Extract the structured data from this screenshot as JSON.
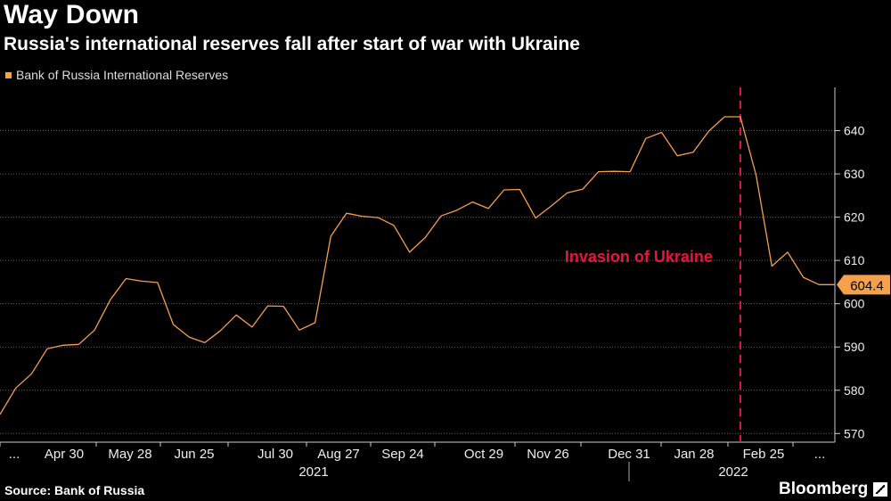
{
  "header": {
    "title": "Way Down",
    "subtitle": "Russia's international reserves fall after start of war with Ukraine"
  },
  "footer": {
    "source": "Source: Bank of Russia",
    "brand": "Bloomberg"
  },
  "colors": {
    "line": "#f5a04a",
    "annotation": "#e8163d",
    "background": "#000000",
    "grid": "#666666"
  },
  "chart_data": {
    "type": "line",
    "title": "Way Down",
    "subtitle": "Russia's international reserves fall after start of war with Ukraine",
    "legend": {
      "position": "top-left",
      "entries": [
        "Bank of Russia International Reserves"
      ]
    },
    "ylim": [
      568,
      650
    ],
    "yticks": [
      570,
      580,
      590,
      600,
      610,
      620,
      630,
      640
    ],
    "y_axis_side": "right",
    "grid": true,
    "x_tick_labels": [
      "...",
      "Apr 30",
      "May 28",
      "Jun 25",
      "Jul 30",
      "Aug 27",
      "Sep 24",
      "Oct 29",
      "Nov 26",
      "Dec 31",
      "Jan 28",
      "Feb 25",
      "..."
    ],
    "x_year_labels": [
      "2021",
      "2022"
    ],
    "last_value_label": "604.4",
    "annotation": {
      "text": "Invasion of Ukraine",
      "at_x": 47,
      "style": "dashed vertical line"
    },
    "series": [
      {
        "name": "Bank of Russia International Reserves",
        "x": [
          0,
          1,
          2,
          3,
          4,
          5,
          6,
          7,
          8,
          9,
          10,
          11,
          12,
          13,
          14,
          15,
          16,
          17,
          18,
          19,
          20,
          21,
          22,
          23,
          24,
          25,
          26,
          27,
          28,
          29,
          30,
          31,
          32,
          33,
          34,
          35,
          36,
          37,
          38,
          39,
          40,
          41,
          42,
          43,
          44,
          45,
          46,
          47,
          48,
          49,
          50,
          51,
          52,
          53
        ],
        "values": [
          574.4,
          580.5,
          583.8,
          589.6,
          590.4,
          590.6,
          593.9,
          600.9,
          605.8,
          605.2,
          604.9,
          595.2,
          592.3,
          591.0,
          593.8,
          597.4,
          594.6,
          599.5,
          599.4,
          593.9,
          595.6,
          615.6,
          620.9,
          620.2,
          619.9,
          618.1,
          611.9,
          615.3,
          620.3,
          621.6,
          623.5,
          622.0,
          626.3,
          626.4,
          619.8,
          622.6,
          625.6,
          626.5,
          630.5,
          630.6,
          630.5,
          638.2,
          639.6,
          634.2,
          635.0,
          639.9,
          643.2,
          643.2,
          629.7,
          608.7,
          611.9,
          606.1,
          604.4,
          604.4
        ]
      }
    ]
  }
}
